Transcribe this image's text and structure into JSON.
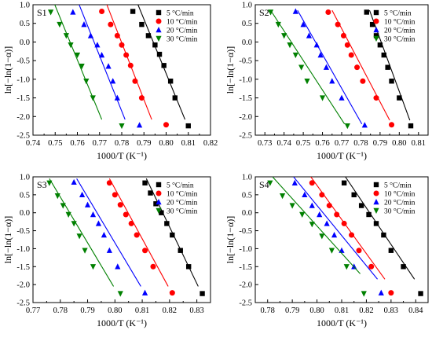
{
  "chart_data": [
    {
      "type": "scatter",
      "panel_label": "S1",
      "xlabel": "1000/T (K⁻¹)",
      "ylabel": "ln[−ln(1−α)]",
      "xlim": [
        0.74,
        0.82
      ],
      "ylim": [
        -2.5,
        1.0
      ],
      "xticks": [
        "0.74",
        "0.75",
        "0.76",
        "0.77",
        "0.78",
        "0.79",
        "0.80",
        "0.81",
        "0.82"
      ],
      "yticks": [
        "-2.5",
        "-2.0",
        "-1.5",
        "-1.0",
        "-0.5",
        "0.0",
        "0.5",
        "1.0"
      ],
      "legend_position": "top-right",
      "series": [
        {
          "name": "5 °C/min",
          "marker": "square",
          "color": "#000000",
          "x": [
            0.785,
            0.789,
            0.792,
            0.795,
            0.797,
            0.799,
            0.802,
            0.804,
            0.81
          ],
          "y": [
            0.82,
            0.47,
            0.17,
            -0.08,
            -0.33,
            -0.63,
            -1.05,
            -1.5,
            -2.25
          ],
          "fit": [
            [
              0.7865,
              1.12
            ],
            [
              0.8085,
              -2.08
            ]
          ]
        },
        {
          "name": "10 °C/min",
          "marker": "circle",
          "color": "#ff0000",
          "x": [
            0.771,
            0.775,
            0.778,
            0.78,
            0.782,
            0.784,
            0.786,
            0.789,
            0.8
          ],
          "y": [
            0.82,
            0.47,
            0.17,
            -0.08,
            -0.35,
            -0.63,
            -1.05,
            -1.5,
            -2.22
          ],
          "fit": [
            [
              0.7725,
              1.12
            ],
            [
              0.7935,
              -2.08
            ]
          ]
        },
        {
          "name": "20 °C/min",
          "marker": "triangle-up",
          "color": "#0000ff",
          "x": [
            0.758,
            0.763,
            0.766,
            0.769,
            0.771,
            0.774,
            0.776,
            0.778,
            0.788
          ],
          "y": [
            0.8,
            0.47,
            0.17,
            -0.08,
            -0.35,
            -0.65,
            -1.05,
            -1.5,
            -2.23
          ],
          "fit": [
            [
              0.76,
              1.12
            ],
            [
              0.7815,
              -2.08
            ]
          ]
        },
        {
          "name": "30 °C/min",
          "marker": "triangle-down",
          "color": "#008000",
          "x": [
            0.748,
            0.752,
            0.755,
            0.757,
            0.76,
            0.762,
            0.764,
            0.767,
            0.78
          ],
          "y": [
            0.8,
            0.47,
            0.17,
            -0.08,
            -0.35,
            -0.65,
            -1.05,
            -1.5,
            -2.25
          ],
          "fit": [
            [
              0.749,
              1.12
            ],
            [
              0.771,
              -2.08
            ]
          ]
        }
      ]
    },
    {
      "type": "scatter",
      "panel_label": "S2",
      "xlabel": "1000/T (K⁻¹)",
      "ylabel": "ln[−ln(1−α)]",
      "xlim": [
        0.725,
        0.815
      ],
      "ylim": [
        -2.5,
        1.0
      ],
      "xticks": [
        "0.73",
        "0.74",
        "0.75",
        "0.76",
        "0.77",
        "0.78",
        "0.79",
        "0.80",
        "0.81"
      ],
      "yticks": [
        "-2.5",
        "-2.0",
        "-1.5",
        "-1.0",
        "-0.5",
        "0.0",
        "0.5",
        "1.0"
      ],
      "legend_position": "top-right",
      "series": [
        {
          "name": "5 °C/min",
          "marker": "square",
          "color": "#000000",
          "x": [
            0.783,
            0.786,
            0.788,
            0.79,
            0.792,
            0.794,
            0.796,
            0.8,
            0.806
          ],
          "y": [
            0.8,
            0.47,
            0.17,
            -0.08,
            -0.35,
            -0.68,
            -1.05,
            -1.5,
            -2.25
          ],
          "fit": [
            [
              0.7845,
              0.85
            ],
            [
              0.8055,
              -2.1
            ]
          ]
        },
        {
          "name": "10 °C/min",
          "marker": "circle",
          "color": "#ff0000",
          "x": [
            0.763,
            0.768,
            0.771,
            0.773,
            0.775,
            0.778,
            0.781,
            0.788,
            0.796
          ],
          "y": [
            0.8,
            0.47,
            0.17,
            -0.08,
            -0.35,
            -0.68,
            -1.05,
            -1.5,
            -2.22
          ],
          "fit": [
            [
              0.765,
              0.85
            ],
            [
              0.795,
              -2.1
            ]
          ]
        },
        {
          "name": "20 °C/min",
          "marker": "triangle-up",
          "color": "#0000ff",
          "x": [
            0.746,
            0.75,
            0.753,
            0.757,
            0.759,
            0.762,
            0.765,
            0.77,
            0.782
          ],
          "y": [
            0.82,
            0.47,
            0.17,
            -0.08,
            -0.35,
            -0.68,
            -1.05,
            -1.5,
            -2.23
          ],
          "fit": [
            [
              0.747,
              0.85
            ],
            [
              0.7805,
              -2.2
            ]
          ]
        },
        {
          "name": "30 °C/min",
          "marker": "triangle-down",
          "color": "#008000",
          "x": [
            0.733,
            0.737,
            0.74,
            0.743,
            0.746,
            0.749,
            0.752,
            0.76,
            0.773
          ],
          "y": [
            0.8,
            0.47,
            0.17,
            -0.08,
            -0.35,
            -0.68,
            -1.05,
            -1.5,
            -2.25
          ],
          "fit": [
            [
              0.733,
              0.85
            ],
            [
              0.7715,
              -2.2
            ]
          ]
        }
      ]
    },
    {
      "type": "scatter",
      "panel_label": "S3",
      "xlabel": "1000/T (K⁻¹)",
      "ylabel": "ln[−ln(1−α)]",
      "xlim": [
        0.77,
        0.835
      ],
      "ylim": [
        -2.5,
        1.0
      ],
      "xticks": [
        "0.77",
        "0.78",
        "0.79",
        "0.80",
        "0.81",
        "0.82",
        "0.83"
      ],
      "yticks": [
        "-2.5",
        "-2.0",
        "-1.5",
        "-1.0",
        "-0.5",
        "0.0",
        "0.5",
        "1.0"
      ],
      "legend_position": "top-right",
      "series": [
        {
          "name": "5 °C/min",
          "marker": "square",
          "color": "#000000",
          "x": [
            0.811,
            0.813,
            0.815,
            0.817,
            0.819,
            0.821,
            0.824,
            0.827,
            0.832
          ],
          "y": [
            0.83,
            0.55,
            0.25,
            0.0,
            -0.3,
            -0.62,
            -1.05,
            -1.5,
            -2.25
          ],
          "fit": [
            [
              0.8115,
              0.95
            ],
            [
              0.8305,
              -2.05
            ]
          ]
        },
        {
          "name": "10 °C/min",
          "marker": "circle",
          "color": "#ff0000",
          "x": [
            0.798,
            0.8,
            0.802,
            0.804,
            0.806,
            0.808,
            0.811,
            0.814,
            0.821
          ],
          "y": [
            0.83,
            0.5,
            0.22,
            -0.05,
            -0.3,
            -0.62,
            -1.05,
            -1.5,
            -2.23
          ],
          "fit": [
            [
              0.798,
              0.95
            ],
            [
              0.8195,
              -2.05
            ]
          ]
        },
        {
          "name": "20 °C/min",
          "marker": "triangle-up",
          "color": "#0000ff",
          "x": [
            0.785,
            0.788,
            0.79,
            0.792,
            0.794,
            0.796,
            0.798,
            0.801,
            0.811
          ],
          "y": [
            0.85,
            0.5,
            0.22,
            -0.05,
            -0.3,
            -0.62,
            -1.05,
            -1.5,
            -2.23
          ],
          "fit": [
            [
              0.786,
              0.95
            ],
            [
              0.8095,
              -2.05
            ]
          ]
        },
        {
          "name": "30 °C/min",
          "marker": "triangle-down",
          "color": "#008000",
          "x": [
            0.776,
            0.779,
            0.781,
            0.783,
            0.785,
            0.787,
            0.789,
            0.792,
            0.802
          ],
          "y": [
            0.83,
            0.47,
            0.2,
            -0.05,
            -0.3,
            -0.65,
            -1.05,
            -1.5,
            -2.25
          ],
          "fit": [
            [
              0.776,
              0.95
            ],
            [
              0.7995,
              -2.05
            ]
          ]
        }
      ]
    },
    {
      "type": "scatter",
      "panel_label": "S4",
      "xlabel": "1000/T (K⁻¹)",
      "ylabel": "ln[−ln(1−α)]",
      "xlim": [
        0.775,
        0.845
      ],
      "ylim": [
        -2.5,
        1.0
      ],
      "xticks": [
        "0.78",
        "0.79",
        "0.80",
        "0.81",
        "0.82",
        "0.83",
        "0.84"
      ],
      "yticks": [
        "-2.5",
        "-2.0",
        "-1.5",
        "-1.0",
        "-0.5",
        "0.0",
        "0.5",
        "1.0"
      ],
      "legend_position": "top-right",
      "series": [
        {
          "name": "5 °C/min",
          "marker": "square",
          "color": "#000000",
          "x": [
            0.811,
            0.815,
            0.818,
            0.821,
            0.824,
            0.827,
            0.83,
            0.835,
            0.842
          ],
          "y": [
            0.83,
            0.5,
            0.2,
            -0.05,
            -0.3,
            -0.62,
            -1.05,
            -1.5,
            -2.25
          ],
          "fit": [
            [
              0.8115,
              1.0
            ],
            [
              0.8395,
              -1.85
            ]
          ]
        },
        {
          "name": "10 °C/min",
          "marker": "circle",
          "color": "#ff0000",
          "x": [
            0.798,
            0.802,
            0.805,
            0.808,
            0.811,
            0.814,
            0.817,
            0.822,
            0.83
          ],
          "y": [
            0.83,
            0.5,
            0.2,
            -0.05,
            -0.3,
            -0.62,
            -1.05,
            -1.5,
            -2.23
          ],
          "fit": [
            [
              0.7975,
              1.0
            ],
            [
              0.8275,
              -1.85
            ]
          ]
        },
        {
          "name": "20 °C/min",
          "marker": "triangle-up",
          "color": "#0000ff",
          "x": [
            0.791,
            0.795,
            0.798,
            0.801,
            0.804,
            0.807,
            0.81,
            0.815,
            0.826
          ],
          "y": [
            0.83,
            0.5,
            0.2,
            -0.05,
            -0.3,
            -0.62,
            -1.05,
            -1.5,
            -2.23
          ],
          "fit": [
            [
              0.7905,
              1.0
            ],
            [
              0.8245,
              -1.85
            ]
          ]
        },
        {
          "name": "30 °C/min",
          "marker": "triangle-down",
          "color": "#008000",
          "x": [
            0.781,
            0.786,
            0.79,
            0.794,
            0.798,
            0.802,
            0.806,
            0.812,
            0.819
          ],
          "y": [
            0.83,
            0.47,
            0.2,
            -0.05,
            -0.32,
            -0.65,
            -1.05,
            -1.5,
            -2.25
          ],
          "fit": [
            [
              0.782,
              1.0
            ],
            [
              0.8175,
              -1.7
            ]
          ]
        }
      ]
    }
  ]
}
